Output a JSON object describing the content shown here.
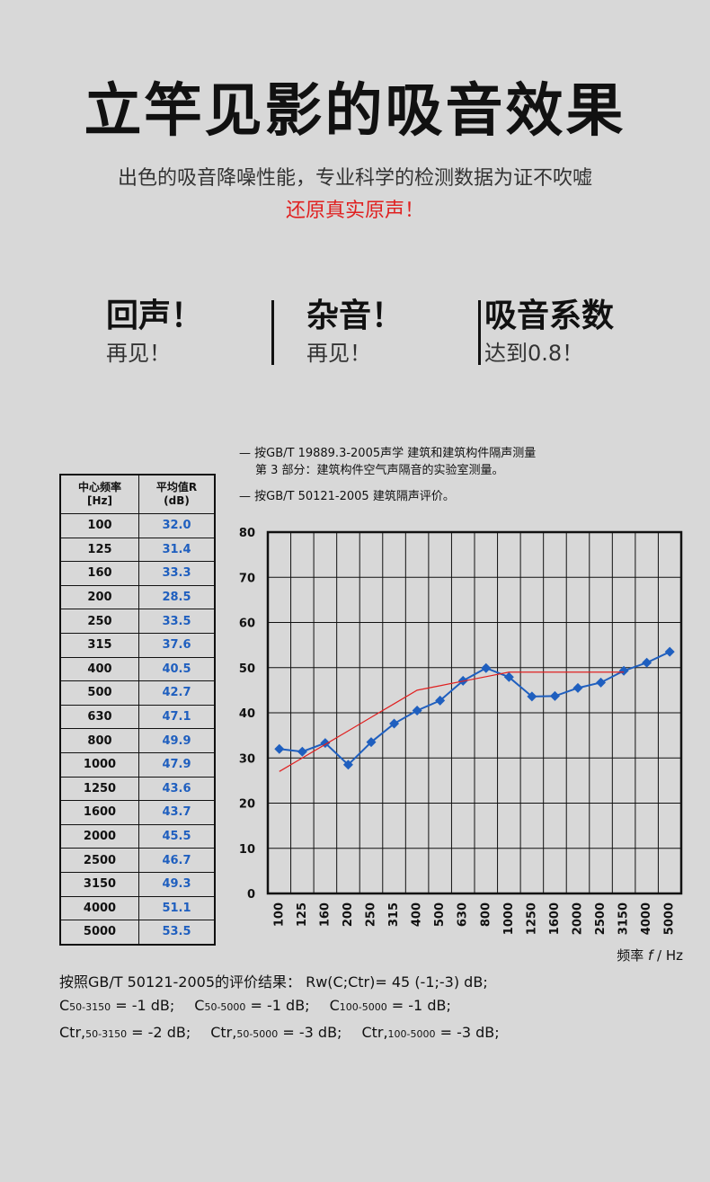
{
  "headline": "立竿见影的吸音效果",
  "subtitle": "出色的吸音降噪性能，专业科学的检测数据为证不吹嘘",
  "subtitle_highlight": "还原真实原声！",
  "features": [
    {
      "title": "回声！",
      "subtitle": "再见！"
    },
    {
      "title": "杂音！",
      "subtitle": "再见！"
    },
    {
      "title": "吸音系数",
      "subtitle": "达到0.8！"
    }
  ],
  "legend": {
    "line1": "— 按GB/T  19889.3-2005声学  建筑和建筑构件隔声测量",
    "line2": "第 3 部分：建筑构件空气声隔音的实验室测量。",
    "line3": "— 按GB/T  50121-2005  建筑隔声评价。"
  },
  "table": {
    "col1_header_line1": "中心频率",
    "col1_header_line2": "[Hz]",
    "col2_header_line1": "平均值R",
    "col2_header_line2": "(dB)",
    "rows": [
      {
        "f": "100",
        "v": "32.0"
      },
      {
        "f": "125",
        "v": "31.4"
      },
      {
        "f": "160",
        "v": "33.3"
      },
      {
        "f": "200",
        "v": "28.5"
      },
      {
        "f": "250",
        "v": "33.5"
      },
      {
        "f": "315",
        "v": "37.6"
      },
      {
        "f": "400",
        "v": "40.5"
      },
      {
        "f": "500",
        "v": "42.7"
      },
      {
        "f": "630",
        "v": "47.1"
      },
      {
        "f": "800",
        "v": "49.9"
      },
      {
        "f": "1000",
        "v": "47.9"
      },
      {
        "f": "1250",
        "v": "43.6"
      },
      {
        "f": "1600",
        "v": "43.7"
      },
      {
        "f": "2000",
        "v": "45.5"
      },
      {
        "f": "2500",
        "v": "46.7"
      },
      {
        "f": "3150",
        "v": "49.3"
      },
      {
        "f": "4000",
        "v": "51.1"
      },
      {
        "f": "5000",
        "v": "53.5"
      }
    ]
  },
  "results": {
    "line1": "按照GB/T  50121-2005的评价结果：   Rw(C;Ctr)= 45 (-1;-3)  dB;",
    "line2": [
      {
        "prefix": "C",
        "sub": "50-3150",
        "value": " = -1 dB;"
      },
      {
        "prefix": "C",
        "sub": "50-5000",
        "value": " = -1 dB;"
      },
      {
        "prefix": "C",
        "sub": "100-5000",
        "value": " = -1 dB;"
      }
    ],
    "line3": [
      {
        "prefix": "Ctr,",
        "sub": "50-3150",
        "value": " = -2 dB;"
      },
      {
        "prefix": "Ctr,",
        "sub": "50-5000",
        "value": " = -3 dB;"
      },
      {
        "prefix": "Ctr,",
        "sub": "100-5000",
        "value": " = -3 dB;"
      }
    ]
  },
  "chart_data": {
    "type": "line",
    "categories": [
      "100",
      "125",
      "160",
      "200",
      "250",
      "315",
      "400",
      "500",
      "630",
      "800",
      "1000",
      "1250",
      "1600",
      "2000",
      "2500",
      "3150",
      "4000",
      "5000"
    ],
    "series": [
      {
        "values": [
          32.0,
          31.4,
          33.3,
          28.5,
          33.5,
          37.6,
          40.5,
          42.7,
          47.1,
          49.9,
          47.9,
          43.6,
          43.7,
          45.5,
          46.7,
          49.3,
          51.1,
          53.5
        ],
        "color": "#1f5fbf",
        "marker": "diamond"
      },
      {
        "values": [
          27,
          30,
          33,
          36,
          39,
          42,
          45,
          46,
          47,
          48,
          49,
          49,
          49,
          49,
          49,
          49,
          null,
          null
        ],
        "color": "#e02020",
        "marker": "none"
      }
    ],
    "xlabel_prefix": "频率 ",
    "xlabel_var": "f",
    "xlabel_suffix": " / Hz",
    "ylim": [
      0,
      80
    ],
    "yticks": [
      0,
      10,
      20,
      30,
      40,
      50,
      60,
      70,
      80
    ],
    "grid": true
  }
}
